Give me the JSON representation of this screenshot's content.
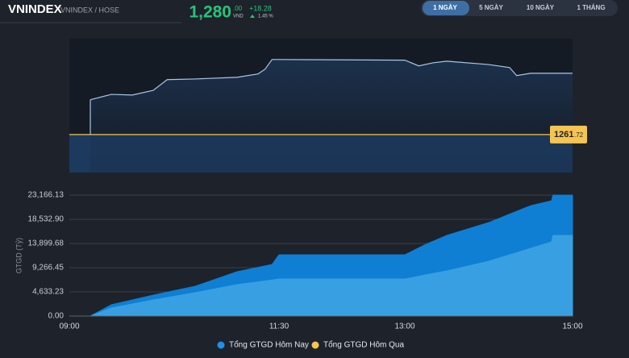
{
  "header": {
    "symbol": "VNINDEX",
    "exchange": "VNINDEX / HOSE",
    "price": "1,280",
    "price_decimals": ".00",
    "currency": "VND",
    "change": "+18.28",
    "change_pct": "1.45 %"
  },
  "tabs": [
    "1 NGÀY",
    "5 NGÀY",
    "10 NGÀY",
    "1 THÁNG"
  ],
  "active_tab": 0,
  "chart_data": [
    {
      "type": "line",
      "color": "#a9c6e6",
      "x": [
        "09:15",
        "09:30",
        "09:45",
        "10:00",
        "10:10",
        "10:30",
        "11:00",
        "11:15",
        "11:20",
        "11:25",
        "11:30",
        "13:00",
        "13:10",
        "13:20",
        "13:30",
        "14:00",
        "14:15",
        "14:20",
        "14:30",
        "15:00"
      ],
      "values": [
        1272.1,
        1273.7,
        1273.5,
        1274.9,
        1278.1,
        1278.3,
        1278.8,
        1279.8,
        1281.2,
        1284.1,
        1284.1,
        1283.9,
        1282.2,
        1283.1,
        1283.6,
        1282.6,
        1281.7,
        1279.3,
        1280.0,
        1280.0
      ],
      "xlim": [
        "09:00",
        "15:00"
      ],
      "ylim": [
        1250.4,
        1290.3
      ],
      "reference": {
        "value": 1261.72,
        "label_int": "1261",
        "label_dec": ".72",
        "color": "#f5c451"
      }
    },
    {
      "type": "area",
      "ylabel": "GTGD (Tỷ)",
      "x": [
        "09:00",
        "09:15",
        "09:30",
        "10:00",
        "10:30",
        "11:00",
        "11:25",
        "11:30",
        "13:00",
        "13:15",
        "13:30",
        "14:00",
        "14:30",
        "14:45",
        "14:46",
        "15:00"
      ],
      "series": [
        {
          "name": "Tổng GTGD Hôm Nay",
          "color": "#1e90e8",
          "area_color": "#0f7fd4",
          "values": [
            0,
            0,
            2160,
            4015,
            5710,
            8490,
            9880,
            11730,
            11730,
            13740,
            15440,
            17910,
            21150,
            22080,
            23166.13,
            23166.13
          ]
        },
        {
          "name": "Tổng GTGD Hôm Qua",
          "color": "#f5c451",
          "area_color": "#38a0e2",
          "values": [
            0,
            0,
            1540,
            3090,
            4480,
            6020,
            6900,
            7100,
            7100,
            7900,
            8650,
            10500,
            12970,
            14200,
            15440,
            15440
          ]
        }
      ],
      "xlim": [
        "09:00",
        "15:00"
      ],
      "xticks": [
        "09:00",
        "11:30",
        "13:00",
        "15:00"
      ],
      "ylim": [
        0,
        23166.13
      ],
      "yticks": [
        {
          "value": 0,
          "label": "0.00"
        },
        {
          "value": 4633.23,
          "label": "4,633.23"
        },
        {
          "value": 9266.45,
          "label": "9,266.45"
        },
        {
          "value": 13899.68,
          "label": "13,899.68"
        },
        {
          "value": 18532.9,
          "label": "18,532.90"
        },
        {
          "value": 23166.13,
          "label": "23,166.13"
        }
      ],
      "grid": true,
      "legend": "bottom"
    }
  ]
}
